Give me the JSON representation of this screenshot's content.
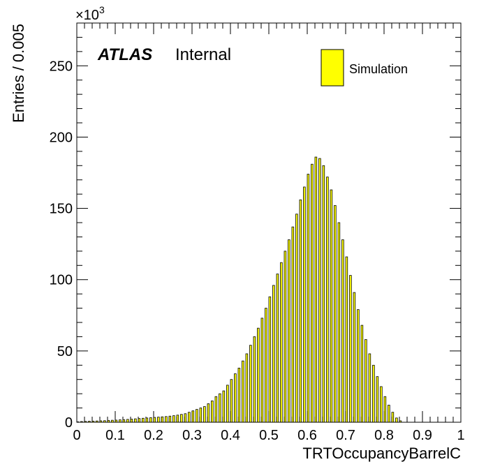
{
  "chart_data": {
    "type": "bar",
    "xlabel": "TRTOccupancyBarrelC",
    "ylabel": "Entries / 0.005",
    "multiplier_base": "×10",
    "multiplier_exp": "3",
    "xlim": [
      0,
      1
    ],
    "ylim": [
      0,
      280
    ],
    "x_ticks": [
      "0",
      "0.1",
      "0.2",
      "0.3",
      "0.4",
      "0.5",
      "0.6",
      "0.7",
      "0.8",
      "0.9",
      "1"
    ],
    "y_ticks": [
      "0",
      "50",
      "100",
      "150",
      "200",
      "250"
    ],
    "grid": false,
    "label_bold": "ATLAS",
    "label_rest": "Internal",
    "legend": {
      "placement": "top-right",
      "entries": [
        {
          "label": "Simulation",
          "color": "#ffff00"
        }
      ]
    },
    "bar_color": "#ffff00",
    "bin_width": 0.005,
    "series": [
      {
        "x": [
          0.0025,
          0.0125,
          0.0225,
          0.0325,
          0.0425,
          0.0525,
          0.0625,
          0.0725,
          0.0825,
          0.0925,
          0.1025,
          0.1125,
          0.1225,
          0.1325,
          0.1425,
          0.1525,
          0.1625,
          0.1725,
          0.1825,
          0.1925,
          0.2025,
          0.2125,
          0.2225,
          0.2325,
          0.2425,
          0.2525,
          0.2625,
          0.2725,
          0.2825,
          0.2925,
          0.3025,
          0.3125,
          0.3225,
          0.3325,
          0.3425,
          0.3525,
          0.3625,
          0.3725,
          0.3825,
          0.3925,
          0.4025,
          0.4125,
          0.4225,
          0.4325,
          0.4425,
          0.4525,
          0.4625,
          0.4725,
          0.4825,
          0.4925,
          0.5025,
          0.5125,
          0.5225,
          0.5325,
          0.5425,
          0.5525,
          0.5625,
          0.5725,
          0.5825,
          0.5925,
          0.6025,
          0.6125,
          0.6225,
          0.6325,
          0.6425,
          0.6525,
          0.6625,
          0.6725,
          0.6825,
          0.6925,
          0.7025,
          0.7125,
          0.7225,
          0.7325,
          0.7425,
          0.7525,
          0.7625,
          0.7725,
          0.7825,
          0.7925,
          0.8025,
          0.8125,
          0.8225,
          0.8325,
          0.8425
        ],
        "values": [
          0.3,
          0.5,
          0.6,
          0.7,
          0.8,
          0.9,
          1.0,
          1.1,
          1.3,
          1.4,
          1.5,
          1.7,
          1.8,
          2.0,
          2.2,
          2.4,
          2.6,
          2.8,
          3.0,
          3.2,
          3.4,
          3.6,
          3.8,
          4.0,
          4.3,
          4.6,
          5,
          5.5,
          6,
          7,
          8,
          9,
          10,
          11,
          13,
          15,
          18,
          20,
          22,
          26,
          30,
          34,
          38,
          43,
          48,
          54,
          60,
          66,
          73,
          80,
          88,
          96,
          104,
          112,
          120,
          128,
          137,
          146,
          156,
          165,
          174,
          181,
          186,
          185,
          180,
          172,
          163,
          152,
          140,
          128,
          116,
          103,
          91,
          79,
          68,
          58,
          48,
          40,
          32,
          25,
          18,
          12,
          7,
          3,
          1
        ],
        "color": "#ffff00"
      }
    ]
  }
}
